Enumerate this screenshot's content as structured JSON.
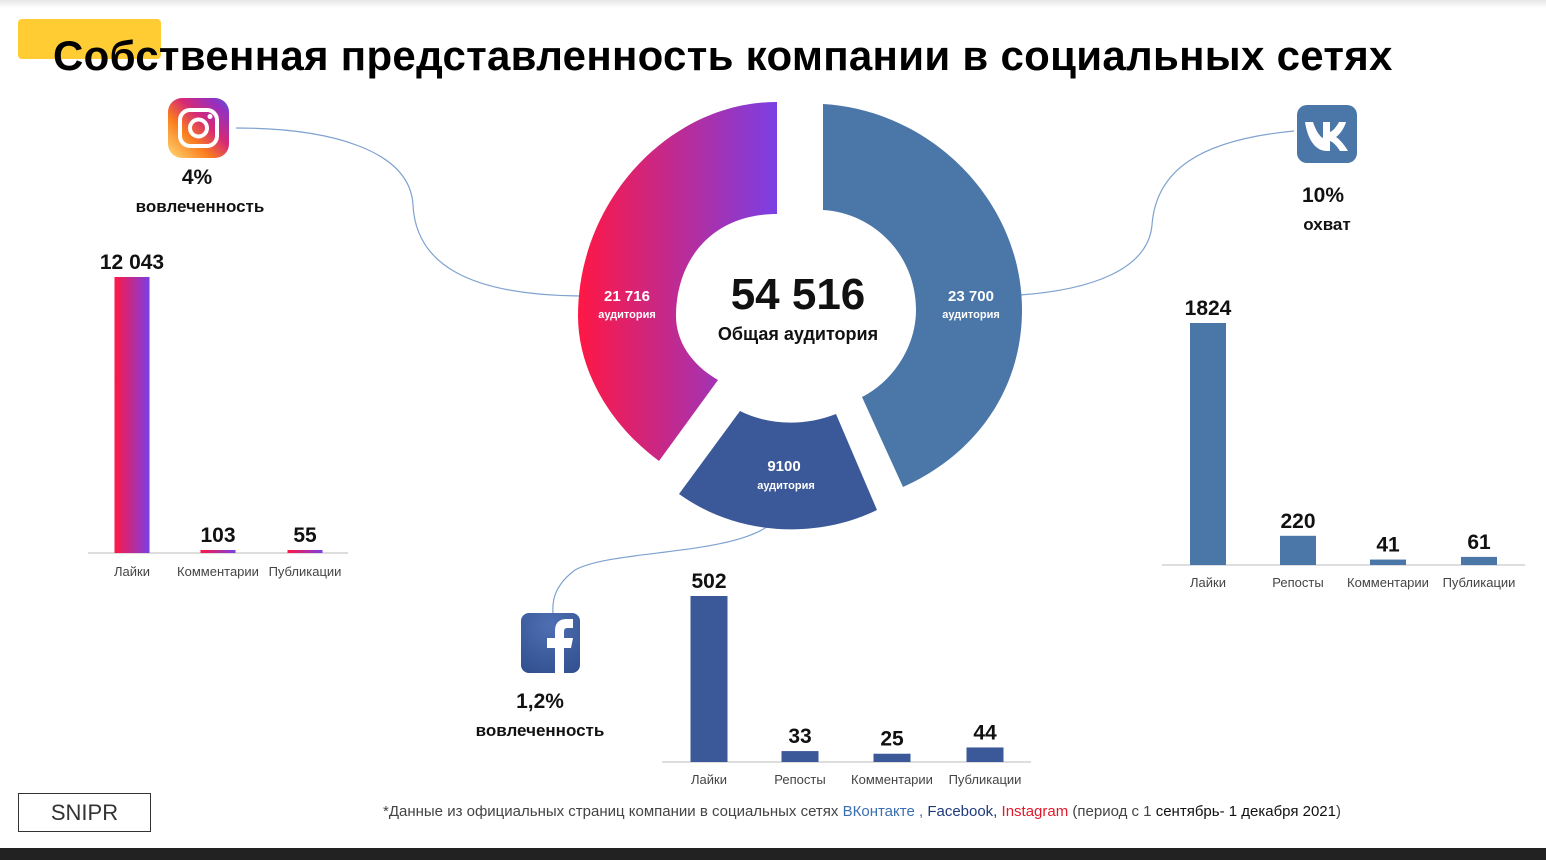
{
  "title": "Собственная представленность компании в социальных сетях",
  "colors": {
    "accent": "#ffcc33",
    "vk": "#4a76a8",
    "facebook": "#3b5998",
    "instagram_start": "#ff1744",
    "instagram_end": "#7b3fe4"
  },
  "donut": {
    "total_value": "54 516",
    "total_label": "Общая аудитория",
    "segments": [
      {
        "network": "instagram",
        "value_text": "21 716",
        "label": "аудитория",
        "value": 21716
      },
      {
        "network": "vk",
        "value_text": "23 700",
        "label": "аудитория",
        "value": 23700
      },
      {
        "network": "facebook",
        "value_text": "9100",
        "label": "аудитория",
        "value": 9100
      }
    ]
  },
  "instagram": {
    "icon": "instagram-icon",
    "metric_value": "4%",
    "metric_label": "вовлеченность"
  },
  "vk": {
    "icon": "vk-icon",
    "metric_value": "10%",
    "metric_label": "охват"
  },
  "facebook": {
    "icon": "facebook-icon",
    "metric_value": "1,2%",
    "metric_label": "вовлеченность"
  },
  "chart_data": [
    {
      "type": "bar",
      "network": "Instagram",
      "categories": [
        "Лайки",
        "Комментарии",
        "Публикации"
      ],
      "values": [
        12043,
        103,
        55
      ],
      "value_labels": [
        "12 043",
        "103",
        "55"
      ]
    },
    {
      "type": "bar",
      "network": "ВКонтакте",
      "categories": [
        "Лайки",
        "Репосты",
        "Комментарии",
        "Публикации"
      ],
      "values": [
        1824,
        220,
        41,
        61
      ],
      "value_labels": [
        "1824",
        "220",
        "41",
        "61"
      ]
    },
    {
      "type": "bar",
      "network": "Facebook",
      "categories": [
        "Лайки",
        "Репосты",
        "Комментарии",
        "Публикации"
      ],
      "values": [
        502,
        33,
        25,
        44
      ],
      "value_labels": [
        "502",
        "33",
        "25",
        "44"
      ]
    }
  ],
  "brand": "SNIPR",
  "footnote": {
    "prefix": "*Данные из официальных страниц компании в социальных сетях ",
    "vk": "ВКонтакте",
    "sep1": " , ",
    "fb": "Facebook,",
    "sep2": " ",
    "ig": "Instagram",
    "period_open": " (период с 1 ",
    "period": "сентябрь- 1 декабря 2021",
    "period_close": ")"
  }
}
